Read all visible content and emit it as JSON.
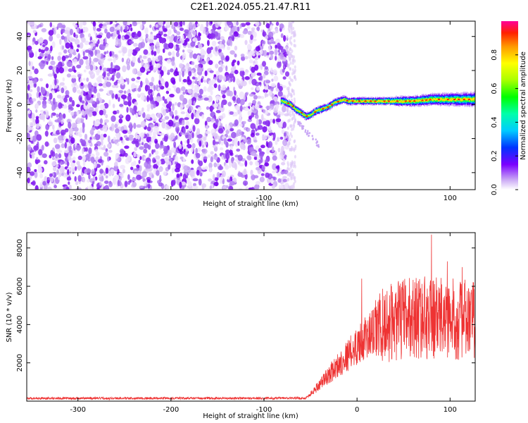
{
  "title": "C2E1.2024.055.21.47.R11",
  "chart_data": [
    {
      "type": "heatmap",
      "xlabel": "Height of straight line (km)",
      "ylabel": "Frequency (Hz)",
      "xlim": [
        -355,
        127
      ],
      "ylim": [
        -50,
        49
      ],
      "xticks": [
        -300,
        -200,
        -100,
        0,
        100
      ],
      "yticks": [
        -40,
        -20,
        0,
        20,
        40
      ],
      "noise_region_x": [
        -355,
        -75
      ],
      "signal_track": {
        "x": [
          -80,
          -72,
          -66,
          -60,
          -55,
          -50,
          -45,
          -40,
          -35,
          -30,
          -25,
          -20,
          -15,
          -10,
          0,
          20,
          40,
          60,
          80,
          100,
          127
        ],
        "y": [
          2,
          0,
          -3,
          -5,
          -7,
          -6,
          -4,
          -3,
          -2,
          -1,
          1,
          2,
          3,
          2,
          2,
          2,
          2,
          2,
          3,
          3,
          3
        ]
      },
      "colorbar": {
        "label": "Normalized spectral amplitude",
        "range": [
          0,
          1
        ],
        "ticks": [
          0.0,
          0.2,
          0.4,
          0.6,
          0.8
        ],
        "tick_labels": [
          "0.0",
          "0.2",
          "0.4",
          "0.6",
          "0.8"
        ]
      }
    },
    {
      "type": "line",
      "xlabel": "Height of straight line (km)",
      "ylabel": "SNR (10 * v/v)",
      "xlim": [
        -355,
        127
      ],
      "ylim": [
        0,
        8800
      ],
      "xticks": [
        -300,
        -200,
        -100,
        0,
        100
      ],
      "yticks": [
        2000,
        4000,
        6000,
        8000
      ],
      "series": [
        {
          "color": "#ee3333",
          "envelope_x": [
            -355,
            -100,
            -55,
            -48,
            -40,
            -30,
            -20,
            -10,
            0,
            10,
            20,
            30,
            40,
            50,
            60,
            70,
            80,
            90,
            100,
            110,
            127
          ],
          "envelope_y": [
            150,
            150,
            160,
            450,
            900,
            1400,
            1900,
            2400,
            2900,
            3300,
            3700,
            4000,
            4150,
            4300,
            4400,
            4400,
            4350,
            4300,
            4300,
            4250,
            4200
          ],
          "spikes": [
            {
              "x": 5,
              "y": 6400
            },
            {
              "x": 80,
              "y": 8700
            },
            {
              "x": 97,
              "y": 7300
            },
            {
              "x": 113,
              "y": 7000
            }
          ]
        }
      ]
    }
  ]
}
